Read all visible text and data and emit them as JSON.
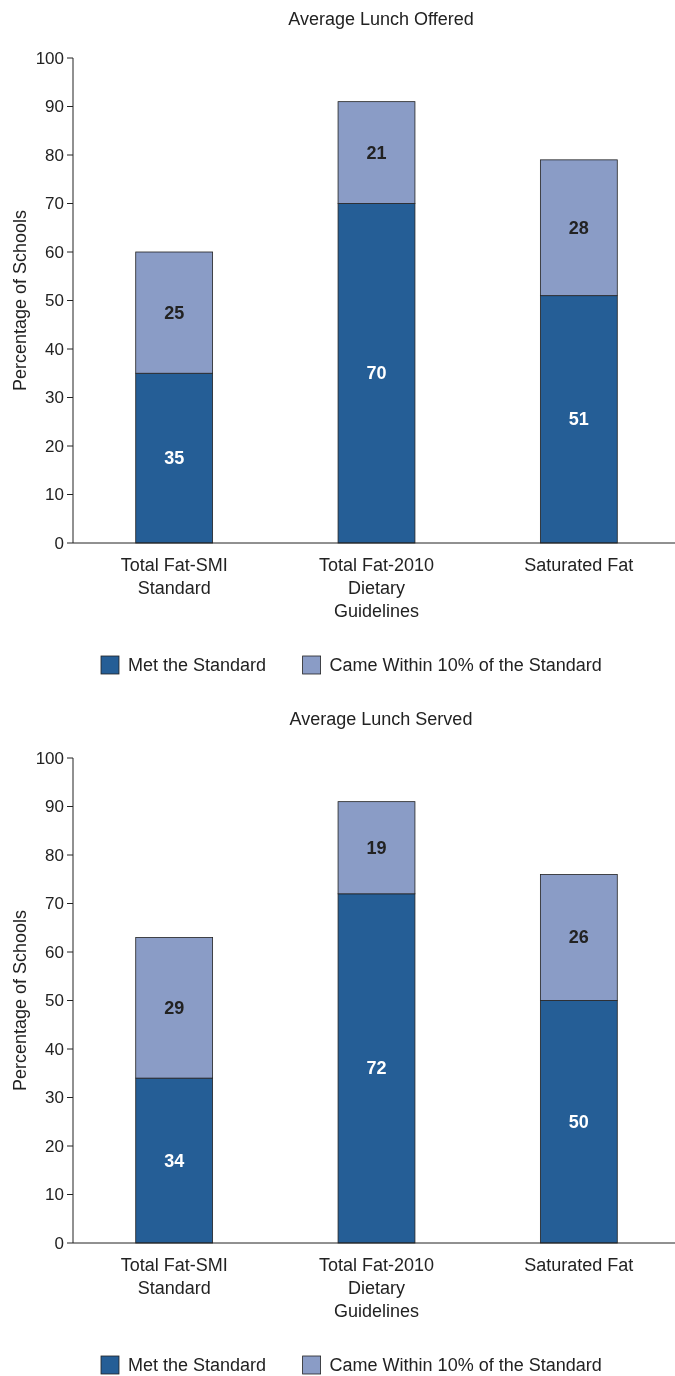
{
  "chart_data": [
    {
      "type": "bar",
      "title": "Average Lunch Offered",
      "ylabel": "Percentage of Schools",
      "categories": [
        "Total Fat-SMI Standard",
        "Total Fat-2010 Dietary Guidelines",
        "Saturated Fat"
      ],
      "stacked": true,
      "data_labels": true,
      "legend": "bottom",
      "grid": false,
      "ylim": [
        0,
        100
      ],
      "yticks": [
        0,
        10,
        20,
        30,
        40,
        50,
        60,
        70,
        80,
        90,
        100
      ],
      "series": [
        {
          "name": "Met the Standard",
          "color": "#255e96",
          "values": [
            35,
            70,
            51
          ]
        },
        {
          "name": "Came Within 10% of the Standard",
          "color": "#8a9cc6",
          "values": [
            25,
            21,
            28
          ]
        }
      ]
    },
    {
      "type": "bar",
      "title": "Average Lunch Served",
      "ylabel": "Percentage of Schools",
      "categories": [
        "Total Fat-SMI Standard",
        "Total Fat-2010 Dietary Guidelines",
        "Saturated Fat"
      ],
      "stacked": true,
      "data_labels": true,
      "legend": "bottom",
      "grid": false,
      "ylim": [
        0,
        100
      ],
      "yticks": [
        0,
        10,
        20,
        30,
        40,
        50,
        60,
        70,
        80,
        90,
        100
      ],
      "series": [
        {
          "name": "Met the Standard",
          "color": "#255e96",
          "values": [
            34,
            72,
            50
          ]
        },
        {
          "name": "Came Within 10% of the Standard",
          "color": "#8a9cc6",
          "values": [
            29,
            19,
            26
          ]
        }
      ]
    }
  ]
}
